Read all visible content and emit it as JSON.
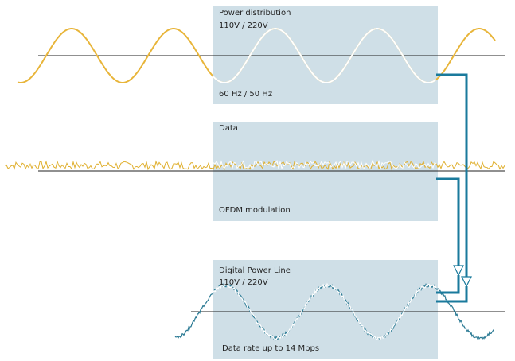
{
  "panels": {
    "power": {
      "title": "Power distribution",
      "subtitle": "110V / 220V",
      "footer": "60 Hz / 50 Hz"
    },
    "data": {
      "title": "Data",
      "footer": "OFDM modulation"
    },
    "dpl": {
      "title": "Digital Power Line",
      "subtitle": "110V / 220V",
      "footer": "Data rate up to 14 Mbps"
    }
  },
  "colors": {
    "panel": "#cfdfe7",
    "power_wave": "#e8b53a",
    "data_wave": "#e0b030",
    "dpl_wave": "#2b7a94",
    "connector": "#1a7a9c",
    "baseline": "#222222"
  }
}
